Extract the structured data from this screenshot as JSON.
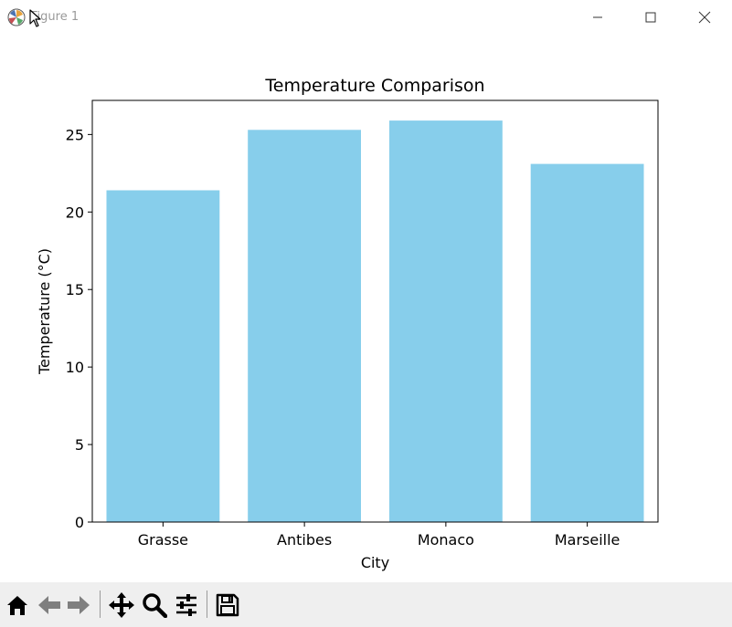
{
  "window": {
    "title": "Figure 1",
    "minimize_icon": "minimize-icon",
    "maximize_icon": "maximize-icon",
    "close_icon": "close-icon"
  },
  "chart_data": {
    "type": "bar",
    "title": "Temperature Comparison",
    "xlabel": "City",
    "ylabel": "Temperature (°C)",
    "categories": [
      "Grasse",
      "Antibes",
      "Monaco",
      "Marseille"
    ],
    "values": [
      21.4,
      25.3,
      25.9,
      23.1
    ],
    "ylim": [
      0,
      27.2
    ],
    "yticks": [
      0,
      5,
      10,
      15,
      20,
      25
    ],
    "bar_color": "#87ceeb",
    "grid": false
  },
  "toolbar": {
    "items": [
      {
        "name": "home-button",
        "icon": "home-icon"
      },
      {
        "name": "back-button",
        "icon": "back-arrow-icon"
      },
      {
        "name": "forward-button",
        "icon": "forward-arrow-icon"
      },
      {
        "name": "pan-button",
        "icon": "move-icon"
      },
      {
        "name": "zoom-button",
        "icon": "zoom-icon"
      },
      {
        "name": "configure-subplots-button",
        "icon": "sliders-icon"
      },
      {
        "name": "save-button",
        "icon": "save-icon"
      }
    ]
  }
}
